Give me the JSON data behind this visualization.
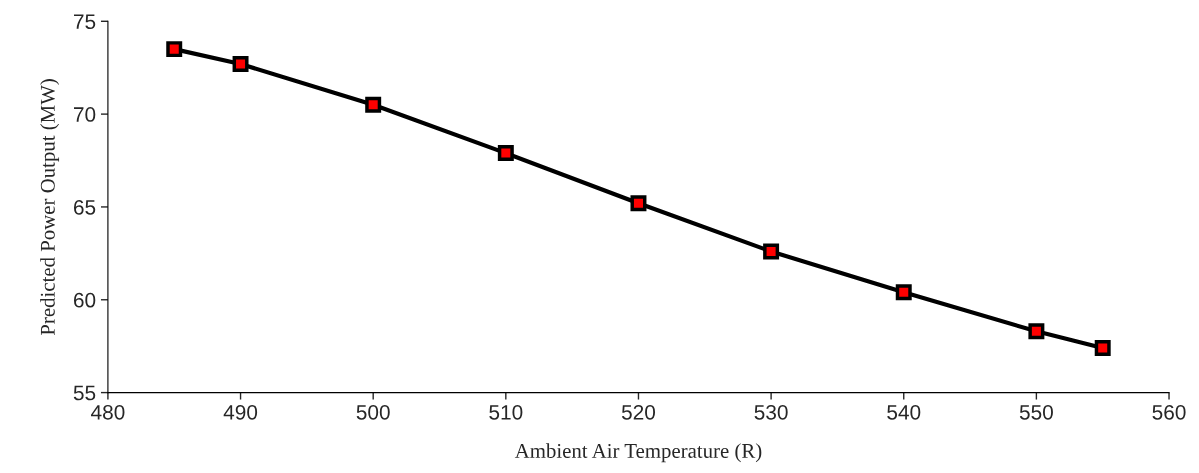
{
  "chart_data": {
    "type": "line",
    "xlabel": "Ambient Air Temperature (R)",
    "ylabel": "Predicted Power Output (MW)",
    "x": [
      485,
      490,
      500,
      510,
      520,
      530,
      540,
      550,
      555
    ],
    "series": [
      {
        "color": "#000000",
        "values": [
          73.5,
          72.7,
          70.5,
          67.9,
          65.2,
          62.6,
          60.4,
          58.3,
          57.4
        ]
      }
    ],
    "xlim": [
      480,
      560
    ],
    "xticks": [
      480,
      490,
      500,
      510,
      520,
      530,
      540,
      550,
      560
    ],
    "ylim": [
      55,
      75
    ],
    "yticks": [
      55,
      60,
      65,
      70,
      75
    ],
    "marker": "square",
    "line_style": "solid",
    "grid": false,
    "legend": false
  }
}
